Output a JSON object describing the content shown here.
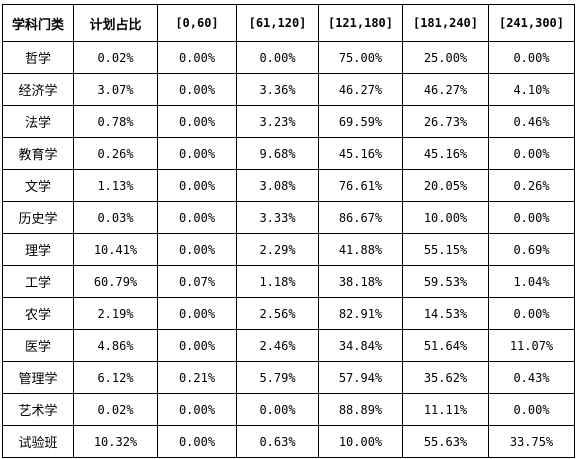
{
  "table": {
    "headers": [
      "学科门类",
      "计划占比",
      "[0,60]",
      "[61,120]",
      "[121,180]",
      "[181,240]",
      "[241,300]"
    ],
    "rows": [
      [
        "哲学",
        "0.02%",
        "0.00%",
        "0.00%",
        "75.00%",
        "25.00%",
        "0.00%"
      ],
      [
        "经济学",
        "3.07%",
        "0.00%",
        "3.36%",
        "46.27%",
        "46.27%",
        "4.10%"
      ],
      [
        "法学",
        "0.78%",
        "0.00%",
        "3.23%",
        "69.59%",
        "26.73%",
        "0.46%"
      ],
      [
        "教育学",
        "0.26%",
        "0.00%",
        "9.68%",
        "45.16%",
        "45.16%",
        "0.00%"
      ],
      [
        "文学",
        "1.13%",
        "0.00%",
        "3.08%",
        "76.61%",
        "20.05%",
        "0.26%"
      ],
      [
        "历史学",
        "0.03%",
        "0.00%",
        "3.33%",
        "86.67%",
        "10.00%",
        "0.00%"
      ],
      [
        "理学",
        "10.41%",
        "0.00%",
        "2.29%",
        "41.88%",
        "55.15%",
        "0.69%"
      ],
      [
        "工学",
        "60.79%",
        "0.07%",
        "1.18%",
        "38.18%",
        "59.53%",
        "1.04%"
      ],
      [
        "农学",
        "2.19%",
        "0.00%",
        "2.56%",
        "82.91%",
        "14.53%",
        "0.00%"
      ],
      [
        "医学",
        "4.86%",
        "0.00%",
        "2.46%",
        "34.84%",
        "51.64%",
        "11.07%"
      ],
      [
        "管理学",
        "6.12%",
        "0.21%",
        "5.79%",
        "57.94%",
        "35.62%",
        "0.43%"
      ],
      [
        "艺术学",
        "0.02%",
        "0.00%",
        "0.00%",
        "88.89%",
        "11.11%",
        "0.00%"
      ],
      [
        "试验班",
        "10.32%",
        "0.00%",
        "0.63%",
        "10.00%",
        "55.63%",
        "33.75%"
      ]
    ]
  }
}
